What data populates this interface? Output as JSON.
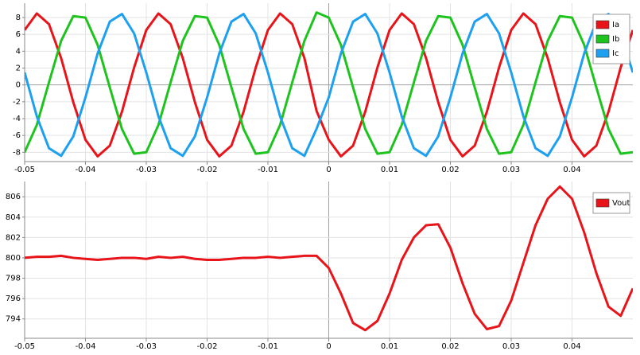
{
  "chart_data": [
    {
      "type": "line",
      "x": [
        -0.05,
        -0.048,
        -0.046,
        -0.044,
        -0.042,
        -0.04,
        -0.038,
        -0.036,
        -0.034,
        -0.032,
        -0.03,
        -0.028,
        -0.026,
        -0.024,
        -0.022,
        -0.02,
        -0.018,
        -0.016,
        -0.014,
        -0.012,
        -0.01,
        -0.008,
        -0.006,
        -0.004,
        -0.002,
        0,
        0.002,
        0.004,
        0.006,
        0.008,
        0.01,
        0.012,
        0.014,
        0.016,
        0.018,
        0.02,
        0.022,
        0.024,
        0.026,
        0.028,
        0.03,
        0.032,
        0.034,
        0.036,
        0.038,
        0.04,
        0.042,
        0.044,
        0.046,
        0.048,
        0.05
      ],
      "series": [
        {
          "name": "Ia",
          "color": "#e8141a",
          "values": [
            6.51,
            8.48,
            7.21,
            3.18,
            -2.06,
            -6.51,
            -8.48,
            -7.21,
            -3.18,
            2.06,
            6.51,
            8.48,
            7.21,
            3.18,
            -2.06,
            -6.51,
            -8.48,
            -7.21,
            -3.18,
            2.06,
            6.51,
            8.48,
            7.21,
            3.18,
            -3.1,
            -6.51,
            -8.48,
            -7.21,
            -3.18,
            2.06,
            6.51,
            8.48,
            7.21,
            3.18,
            -2.06,
            -6.51,
            -8.48,
            -7.21,
            -3.18,
            2.06,
            6.51,
            8.48,
            7.21,
            3.18,
            -2.06,
            -6.51,
            -8.48,
            -7.21,
            -3.18,
            2.06,
            6.51
          ]
        },
        {
          "name": "Ib",
          "color": "#1ec31e",
          "values": [
            -7.99,
            -4.75,
            0.3,
            5.23,
            8.17,
            7.99,
            4.75,
            -0.3,
            -5.23,
            -8.17,
            -7.99,
            -4.75,
            0.3,
            5.23,
            8.17,
            7.99,
            4.75,
            -0.3,
            -5.23,
            -8.17,
            -7.99,
            -4.75,
            0.3,
            5.23,
            8.6,
            7.99,
            4.75,
            -0.3,
            -5.23,
            -8.17,
            -7.99,
            -4.75,
            0.3,
            5.23,
            8.17,
            7.99,
            4.75,
            -0.3,
            -5.23,
            -8.17,
            -7.99,
            -4.75,
            0.3,
            5.23,
            8.17,
            7.99,
            4.75,
            -0.3,
            -5.23,
            -8.17,
            -7.99
          ]
        },
        {
          "name": "Ic",
          "color": "#1ea0f0",
          "values": [
            1.48,
            -3.73,
            -7.51,
            -8.42,
            -6.11,
            -1.48,
            3.73,
            7.51,
            8.42,
            6.11,
            1.48,
            -3.73,
            -7.51,
            -8.42,
            -6.11,
            -1.48,
            3.73,
            7.51,
            8.42,
            6.11,
            1.48,
            -3.73,
            -7.51,
            -8.42,
            -5.2,
            -1.48,
            3.73,
            7.51,
            8.42,
            6.11,
            1.48,
            -3.73,
            -7.51,
            -8.42,
            -6.11,
            -1.48,
            3.73,
            7.51,
            8.42,
            6.11,
            1.48,
            -3.73,
            -7.51,
            -8.42,
            -6.11,
            -1.48,
            3.73,
            7.51,
            8.42,
            6.11,
            1.48
          ]
        }
      ],
      "xlim": [
        -0.05,
        0.05
      ],
      "xticks": [
        -0.05,
        -0.04,
        -0.03,
        -0.02,
        -0.01,
        0,
        0.01,
        0.02,
        0.03,
        0.04
      ],
      "ylim": [
        -9.1,
        9.7
      ],
      "yticks": [
        -8,
        -6,
        -4,
        -2,
        0,
        2,
        4,
        6,
        8
      ],
      "grid": true,
      "legend": "top right"
    },
    {
      "type": "line",
      "x": [
        -0.05,
        -0.048,
        -0.046,
        -0.044,
        -0.042,
        -0.04,
        -0.038,
        -0.036,
        -0.034,
        -0.032,
        -0.03,
        -0.028,
        -0.026,
        -0.024,
        -0.022,
        -0.02,
        -0.018,
        -0.016,
        -0.014,
        -0.012,
        -0.01,
        -0.008,
        -0.006,
        -0.004,
        -0.002,
        0,
        0.002,
        0.004,
        0.006,
        0.008,
        0.01,
        0.012,
        0.014,
        0.016,
        0.018,
        0.02,
        0.022,
        0.024,
        0.026,
        0.028,
        0.03,
        0.032,
        0.034,
        0.036,
        0.038,
        0.04,
        0.042,
        0.044,
        0.046,
        0.048,
        0.05
      ],
      "series": [
        {
          "name": "Vout",
          "color": "#e8141a",
          "values": [
            800.0,
            800.1,
            800.1,
            800.2,
            800.0,
            799.9,
            799.8,
            799.9,
            800.0,
            800.0,
            799.9,
            800.1,
            800.0,
            800.1,
            799.9,
            799.8,
            799.8,
            799.9,
            800.0,
            800.0,
            800.1,
            800.0,
            800.1,
            800.2,
            800.2,
            799.0,
            796.5,
            793.6,
            792.9,
            793.8,
            796.5,
            799.8,
            802.0,
            803.2,
            803.3,
            801.0,
            797.5,
            794.5,
            793.0,
            793.3,
            795.8,
            799.5,
            803.2,
            805.8,
            807.0,
            805.8,
            802.5,
            798.5,
            795.2,
            794.3,
            797.0
          ]
        }
      ],
      "xlim": [
        -0.05,
        0.05
      ],
      "xticks": [
        -0.05,
        -0.04,
        -0.03,
        -0.02,
        -0.01,
        0,
        0.01,
        0.02,
        0.03,
        0.04
      ],
      "ylim": [
        792.1,
        807.5
      ],
      "yticks": [
        794,
        796,
        798,
        800,
        802,
        804,
        806
      ],
      "grid": true,
      "legend": "top right"
    }
  ]
}
